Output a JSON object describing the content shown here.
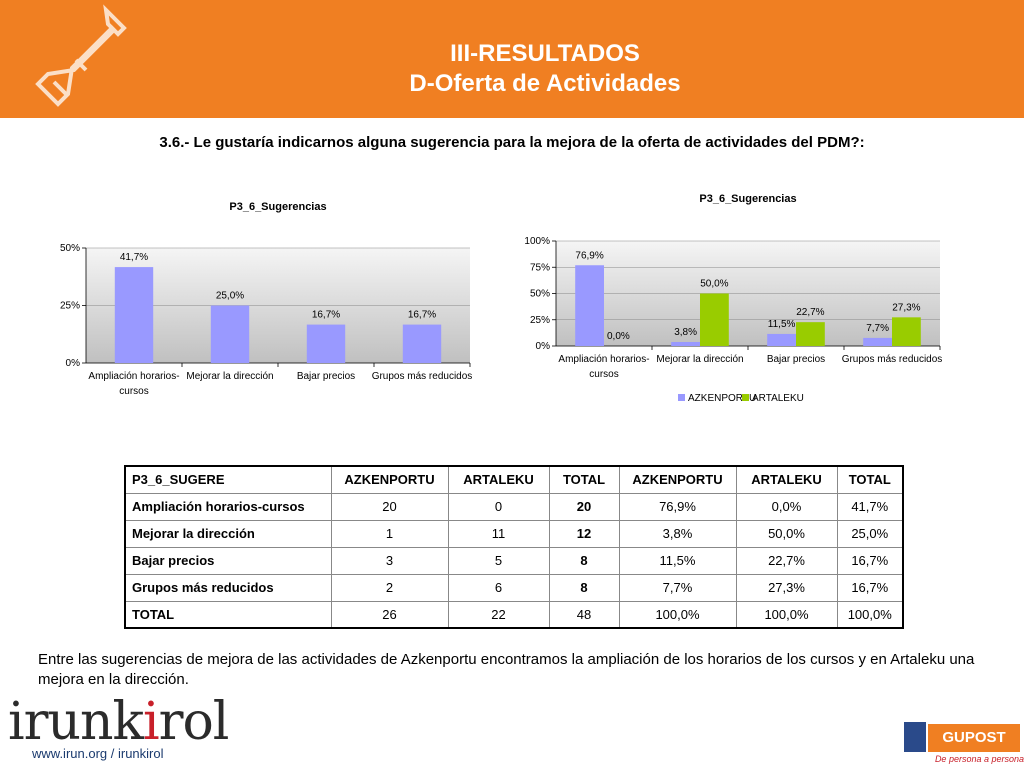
{
  "header": {
    "title_line1": "III-RESULTADOS",
    "title_line2": "D-Oferta de Actividades"
  },
  "question": "3.6.- Le gustaría indicarnos alguna sugerencia para la mejora de la oferta de actividades del PDM?:",
  "chart_data": [
    {
      "type": "bar",
      "title": "P3_6_Sugerencias",
      "categories": [
        "Ampliación horarios-cursos",
        "Mejorar la dirección",
        "Bajar precios",
        "Grupos más reducidos"
      ],
      "category_lines": [
        [
          "Ampliación horarios-",
          "cursos"
        ],
        [
          "Mejorar la dirección"
        ],
        [
          "Bajar precios"
        ],
        [
          "Grupos más reducidos"
        ]
      ],
      "values": [
        41.7,
        25.0,
        16.7,
        16.7
      ],
      "value_labels": [
        "41,7%",
        "25,0%",
        "16,7%",
        "16,7%"
      ],
      "ylim": [
        0,
        50
      ],
      "yticks": [
        "0%",
        "25%",
        "50%"
      ],
      "color": "#9999ff"
    },
    {
      "type": "bar",
      "title": "P3_6_Sugerencias",
      "categories": [
        "Ampliación horarios-cursos",
        "Mejorar la dirección",
        "Bajar precios",
        "Grupos más reducidos"
      ],
      "category_lines": [
        [
          "Ampliación horarios-",
          "cursos"
        ],
        [
          "Mejorar la dirección"
        ],
        [
          "Bajar precios"
        ],
        [
          "Grupos más reducidos"
        ]
      ],
      "series": [
        {
          "name": "AZKENPORTU",
          "values": [
            76.9,
            3.8,
            11.5,
            7.7
          ],
          "labels": [
            "76,9%",
            "3,8%",
            "11,5%",
            "7,7%"
          ],
          "color": "#9999ff"
        },
        {
          "name": "ARTALEKU",
          "values": [
            0.0,
            50.0,
            22.7,
            27.3
          ],
          "labels": [
            "0,0%",
            "50,0%",
            "22,7%",
            "27,3%"
          ],
          "color": "#99cc00"
        }
      ],
      "ylim": [
        0,
        100
      ],
      "yticks": [
        "0%",
        "25%",
        "50%",
        "75%",
        "100%"
      ],
      "legend": "bottom"
    }
  ],
  "table": {
    "headers": [
      "P3_6_SUGERE",
      "AZKENPORTU",
      "ARTALEKU",
      "TOTAL",
      "AZKENPORTU",
      "ARTALEKU",
      "TOTAL"
    ],
    "rows": [
      {
        "label": "Ampliación horarios-cursos",
        "c1": "20",
        "c2": "0",
        "c3": "20",
        "c4": "76,9%",
        "c5": "0,0%",
        "c6": "41,7%"
      },
      {
        "label": "Mejorar la dirección",
        "c1": "1",
        "c2": "11",
        "c3": "12",
        "c4": "3,8%",
        "c5": "50,0%",
        "c6": "25,0%"
      },
      {
        "label": "Bajar precios",
        "c1": "3",
        "c2": "5",
        "c3": "8",
        "c4": "11,5%",
        "c5": "22,7%",
        "c6": "16,7%"
      },
      {
        "label": "Grupos más reducidos",
        "c1": "2",
        "c2": "6",
        "c3": "8",
        "c4": "7,7%",
        "c5": "27,3%",
        "c6": "16,7%"
      },
      {
        "label": "TOTAL",
        "c1": "26",
        "c2": "22",
        "c3": "48",
        "c4": "100,0%",
        "c5": "100,0%",
        "c6": "100,0%"
      }
    ]
  },
  "conclusion": "Entre las sugerencias de mejora de las actividades de Azkenportu encontramos la ampliación de los horarios de los cursos y en Artaleku una mejora en la dirección.",
  "footer": {
    "logo_part1": "irunk",
    "logo_accent": "i",
    "logo_part2": "rol",
    "url": "www.irun.org / irunkirol",
    "partner_name": "GUPOST",
    "partner_tagline": "De persona a persona"
  }
}
